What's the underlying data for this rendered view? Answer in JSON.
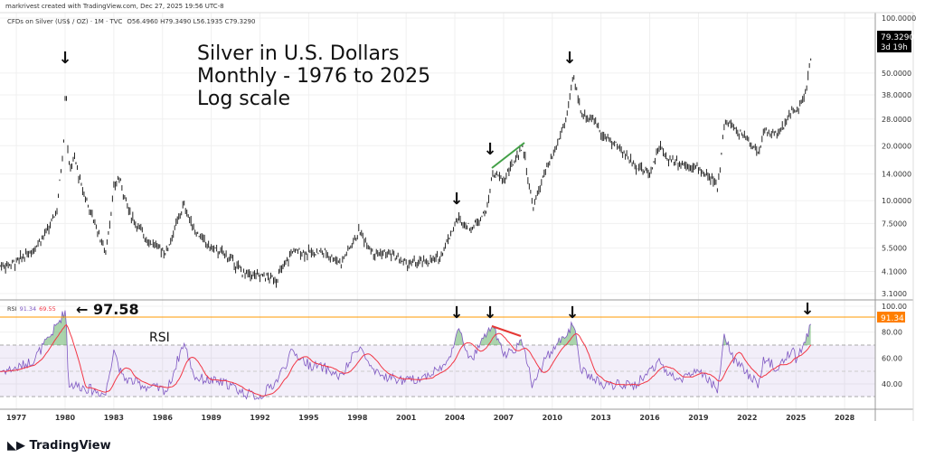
{
  "header": {
    "credit": "markrivest created with TradingView.com, Dec 27, 2025 19:56 UTC-8",
    "symbol_line": "CFDs on Silver (US$ / OZ) · 1M · TVC",
    "ohlc": "O56.4960  H79.3490  L56.1935  C79.3290"
  },
  "price_tag": {
    "value": "79.3290",
    "countdown": "3d 19h"
  },
  "rsi_legend": {
    "label": "RSI",
    "value": "91.34",
    "ma": "69.55"
  },
  "rsi_tag": "91.34",
  "annotations": {
    "title1": "Silver in U.S. Dollars",
    "title2": "Monthly - 1976 to 2025",
    "title3": "Log scale",
    "rsi_peak": "← 97.58",
    "rsi_label": "RSI",
    "arrow": "↓"
  },
  "logo": "TradingView",
  "colors": {
    "rsi": "#7e57c2",
    "rsi_ma": "#f23645",
    "tag": "#ff7f00",
    "green": "#43a047",
    "red": "#e53935"
  },
  "chart_data": [
    {
      "type": "ohlc",
      "title": "CFDs on Silver (US$ / OZ) · 1M · TVC",
      "scale": "log",
      "ylim": [
        3.1,
        100
      ],
      "xlim": [
        1976,
        2029.5
      ],
      "y_ticks": [
        "100.0000",
        "50.0000",
        "38.0000",
        "28.0000",
        "20.0000",
        "14.0000",
        "10.0000",
        "7.5000",
        "5.5000",
        "4.1000",
        "3.1000"
      ],
      "y_tick_values": [
        100,
        50,
        38,
        28,
        20,
        14,
        10,
        7.5,
        5.5,
        4.1,
        3.1
      ],
      "x_ticks": [
        "1977",
        "1980",
        "1983",
        "1986",
        "1989",
        "1992",
        "1995",
        "1998",
        "2001",
        "2004",
        "2007",
        "2010",
        "2013",
        "2016",
        "2019",
        "2022",
        "2025",
        "2028"
      ],
      "close_anchors": [
        [
          1976,
          4.4
        ],
        [
          1977,
          4.6
        ],
        [
          1978,
          5.4
        ],
        [
          1979,
          7
        ],
        [
          1979.5,
          9
        ],
        [
          1979.9,
          20
        ],
        [
          1980.05,
          49
        ],
        [
          1980.2,
          15
        ],
        [
          1980.6,
          17
        ],
        [
          1981,
          12
        ],
        [
          1982.5,
          5.2
        ],
        [
          1983,
          11.5
        ],
        [
          1983.3,
          13.5
        ],
        [
          1984,
          8.5
        ],
        [
          1985,
          6.2
        ],
        [
          1986.2,
          5.2
        ],
        [
          1987.3,
          9.5
        ],
        [
          1988,
          6.8
        ],
        [
          1989,
          5.5
        ],
        [
          1990,
          5
        ],
        [
          1991,
          4
        ],
        [
          1992,
          3.9
        ],
        [
          1993,
          3.7
        ],
        [
          1994,
          5.3
        ],
        [
          1995,
          5.2
        ],
        [
          1996,
          5.2
        ],
        [
          1997,
          4.6
        ],
        [
          1998.1,
          6.8
        ],
        [
          1999,
          5.2
        ],
        [
          2000,
          5.1
        ],
        [
          2001,
          4.5
        ],
        [
          2002,
          4.6
        ],
        [
          2003,
          4.8
        ],
        [
          2004.2,
          8
        ],
        [
          2005,
          7
        ],
        [
          2006,
          9
        ],
        [
          2006.3,
          14
        ],
        [
          2007,
          13
        ],
        [
          2008.2,
          20
        ],
        [
          2008.8,
          9
        ],
        [
          2009.5,
          14
        ],
        [
          2010,
          17
        ],
        [
          2010.9,
          29
        ],
        [
          2011.3,
          48
        ],
        [
          2011.8,
          30
        ],
        [
          2012.5,
          28
        ],
        [
          2013.3,
          22
        ],
        [
          2014,
          20
        ],
        [
          2015,
          16
        ],
        [
          2016,
          14
        ],
        [
          2016.6,
          20
        ],
        [
          2017,
          17
        ],
        [
          2018,
          16
        ],
        [
          2019,
          15
        ],
        [
          2020.2,
          12
        ],
        [
          2020.6,
          27
        ],
        [
          2021,
          26
        ],
        [
          2022,
          22
        ],
        [
          2022.7,
          18
        ],
        [
          2023,
          24
        ],
        [
          2024,
          23
        ],
        [
          2024.8,
          32
        ],
        [
          2025,
          30
        ],
        [
          2025.5,
          36
        ],
        [
          2025.9,
          56
        ],
        [
          2025.99,
          79.33
        ]
      ],
      "last": 79.329
    },
    {
      "type": "line",
      "title": "RSI",
      "ylim": [
        25,
        100
      ],
      "y_ticks": [
        "100.00",
        "80.00",
        "60.00",
        "40.00"
      ],
      "y_tick_values": [
        100,
        80,
        60,
        40
      ],
      "bands": [
        70,
        30
      ],
      "series": [
        {
          "name": "RSI",
          "last": 91.34,
          "anchors": [
            [
              1976,
              50
            ],
            [
              1977,
              52
            ],
            [
              1978,
              58
            ],
            [
              1979,
              75
            ],
            [
              1980.05,
              97.58
            ],
            [
              1980.2,
              40
            ],
            [
              1981,
              38
            ],
            [
              1982.5,
              32
            ],
            [
              1983,
              68
            ],
            [
              1983.5,
              45
            ],
            [
              1985,
              38
            ],
            [
              1986.3,
              35
            ],
            [
              1987.3,
              72
            ],
            [
              1988,
              45
            ],
            [
              1990,
              40
            ],
            [
              1991,
              33
            ],
            [
              1992,
              30
            ],
            [
              1993,
              42
            ],
            [
              1994,
              65
            ],
            [
              1995,
              55
            ],
            [
              1996,
              52
            ],
            [
              1997,
              45
            ],
            [
              1998.1,
              70
            ],
            [
              1999,
              48
            ],
            [
              2001,
              42
            ],
            [
              2002,
              45
            ],
            [
              2003.5,
              55
            ],
            [
              2004.2,
              82
            ],
            [
              2005,
              58
            ],
            [
              2006.3,
              86
            ],
            [
              2007,
              62
            ],
            [
              2008.2,
              72
            ],
            [
              2008.8,
              38
            ],
            [
              2009.5,
              58
            ],
            [
              2010.9,
              80
            ],
            [
              2011.3,
              86
            ],
            [
              2011.8,
              50
            ],
            [
              2013.3,
              38
            ],
            [
              2014,
              40
            ],
            [
              2015,
              38
            ],
            [
              2016.6,
              58
            ],
            [
              2017,
              48
            ],
            [
              2018,
              45
            ],
            [
              2019,
              50
            ],
            [
              2020.2,
              35
            ],
            [
              2020.6,
              78
            ],
            [
              2021,
              62
            ],
            [
              2022,
              48
            ],
            [
              2022.7,
              40
            ],
            [
              2023,
              58
            ],
            [
              2024,
              52
            ],
            [
              2024.8,
              68
            ],
            [
              2025,
              60
            ],
            [
              2025.5,
              70
            ],
            [
              2025.9,
              85
            ],
            [
              2025.99,
              91.34
            ]
          ]
        },
        {
          "name": "RSI-based MA",
          "last": 69.55
        }
      ]
    }
  ]
}
